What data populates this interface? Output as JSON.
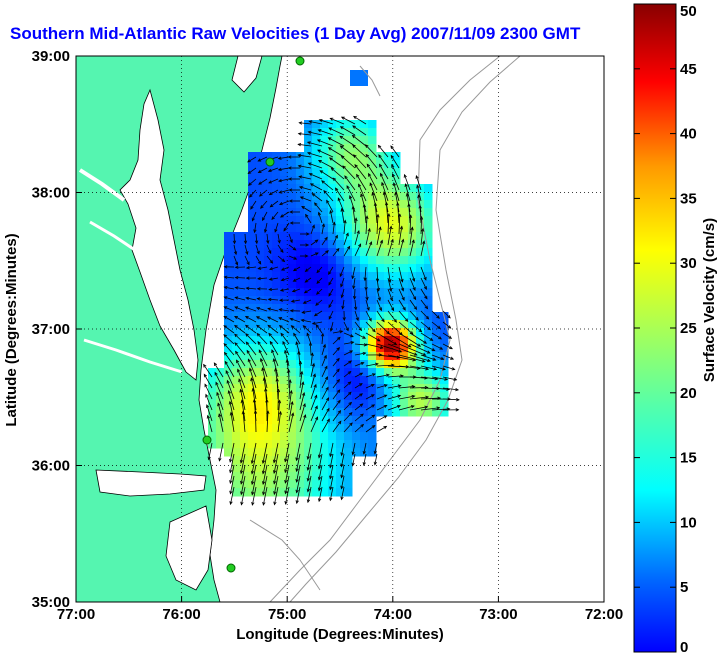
{
  "title": "Southern Mid-Atlantic Raw Velocities (1 Day Avg) 2007/11/09 2300 GMT",
  "map": {
    "xlabel": "Longitude (Degrees:Minutes)",
    "ylabel": "Latitude (Degrees:Minutes)",
    "x_ticks": [
      "77:00",
      "76:00",
      "75:00",
      "74:00",
      "73:00",
      "72:00"
    ],
    "y_ticks": [
      "39:00",
      "38:00",
      "37:00",
      "36:00",
      "35:00"
    ],
    "lon_range": [
      -77,
      -72
    ],
    "lat_range": [
      35,
      39
    ],
    "grid": "dotted",
    "land_color": "#55f5b0",
    "bathymetry_color": "#999999",
    "station_color": "#22cc22",
    "arrow_color": "#000000"
  },
  "colorbar": {
    "label": "Surface Velocity (cm/s)",
    "ticks": [
      "50",
      "45",
      "40",
      "35",
      "30",
      "25",
      "20",
      "15",
      "10",
      "5",
      "0"
    ],
    "range": [
      0,
      50
    ],
    "colormap": "jet"
  }
}
